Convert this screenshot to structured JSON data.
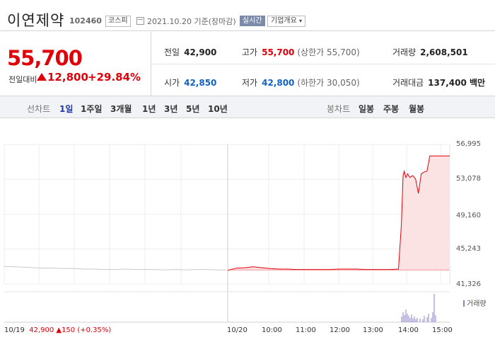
{
  "header": {
    "stock_name": "이연제약",
    "stock_code": "102460",
    "market": "코스피",
    "date_text": "2021.10.20 기준(장마감)",
    "realtime_label": "실시간",
    "overview_label": "기업개요"
  },
  "price": {
    "current": "55,700",
    "diff_label": "전일대비",
    "diff_value": "12,800",
    "diff_rate": "+29.84%"
  },
  "stats": {
    "prev_close": {
      "label": "전일",
      "value": "42,900"
    },
    "high": {
      "label": "고가",
      "value": "55,700",
      "sub": "(상한가 55,700)"
    },
    "volume": {
      "label": "거래량",
      "value": "2,608,501"
    },
    "open": {
      "label": "시가",
      "value": "42,850"
    },
    "low": {
      "label": "저가",
      "value": "42,800",
      "sub": "(하한가 30,050)"
    },
    "amount": {
      "label": "거래대금",
      "value": "137,400 백만"
    }
  },
  "toolbar": {
    "line_label": "선차트",
    "periods": [
      "1일",
      "1주일",
      "3개월",
      "1년",
      "3년",
      "5년",
      "10년"
    ],
    "candle_label": "봉차트",
    "candles": [
      "일봉",
      "주봉",
      "월봉"
    ]
  },
  "chart_data": {
    "type": "line",
    "y_ticks": [
      "56,995",
      "53,078",
      "49,160",
      "45,243",
      "41,326"
    ],
    "ylim": [
      41326,
      56995
    ],
    "x_ticks": [
      "10/20",
      "10:00",
      "11:00",
      "12:00",
      "13:00",
      "14:00",
      "15:00"
    ],
    "prev_day_label": "10/19",
    "prev_day_close": "42,900",
    "prev_day_change": "▲150 (+0.35%)",
    "volume_label": "거래량",
    "reference_line": 42900,
    "colors": {
      "today_line": "#e0000a",
      "prev_line": "#c8c8c8",
      "fill": "#fbe3e3",
      "volume": "#8d80c8"
    },
    "prev_series": [
      43300,
      43250,
      43200,
      43150,
      43100,
      43100,
      43050,
      43050,
      43000,
      43000,
      42950,
      42950,
      43000,
      42950,
      42950,
      42950,
      42900,
      42950,
      42900,
      42950,
      42950,
      42900,
      42900
    ],
    "today_series": [
      {
        "t": "09:00",
        "v": 42850
      },
      {
        "t": "09:15",
        "v": 43100
      },
      {
        "t": "09:30",
        "v": 43150
      },
      {
        "t": "09:45",
        "v": 43250
      },
      {
        "t": "10:00",
        "v": 43150
      },
      {
        "t": "10:15",
        "v": 43050
      },
      {
        "t": "10:30",
        "v": 43000
      },
      {
        "t": "10:45",
        "v": 43000
      },
      {
        "t": "11:00",
        "v": 42950
      },
      {
        "t": "11:15",
        "v": 42950
      },
      {
        "t": "11:30",
        "v": 42950
      },
      {
        "t": "11:45",
        "v": 42950
      },
      {
        "t": "12:00",
        "v": 42950
      },
      {
        "t": "12:15",
        "v": 43000
      },
      {
        "t": "12:30",
        "v": 43000
      },
      {
        "t": "12:45",
        "v": 43000
      },
      {
        "t": "13:00",
        "v": 42950
      },
      {
        "t": "13:15",
        "v": 42950
      },
      {
        "t": "13:30",
        "v": 42950
      },
      {
        "t": "13:45",
        "v": 42950
      },
      {
        "t": "14:00",
        "v": 43000
      },
      {
        "t": "14:05",
        "v": 48000
      },
      {
        "t": "14:08",
        "v": 53500
      },
      {
        "t": "14:10",
        "v": 54000
      },
      {
        "t": "14:13",
        "v": 53300
      },
      {
        "t": "14:16",
        "v": 53700
      },
      {
        "t": "14:20",
        "v": 53300
      },
      {
        "t": "14:25",
        "v": 53500
      },
      {
        "t": "14:30",
        "v": 53100
      },
      {
        "t": "14:35",
        "v": 51500
      },
      {
        "t": "14:40",
        "v": 53700
      },
      {
        "t": "14:45",
        "v": 53900
      },
      {
        "t": "14:50",
        "v": 54000
      },
      {
        "t": "14:55",
        "v": 55700
      },
      {
        "t": "15:30",
        "v": 55700
      }
    ]
  }
}
